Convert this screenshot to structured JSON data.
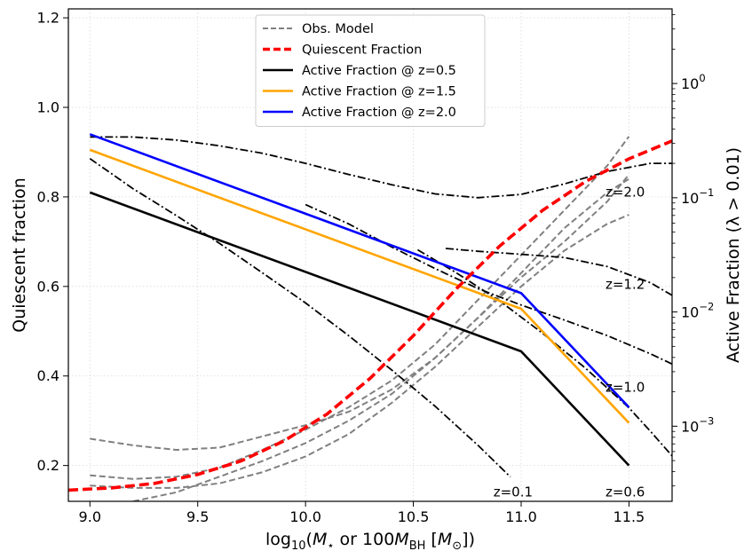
{
  "chart_data": {
    "type": "line",
    "xlabel": "log10(M⋆ or 100MBH [M☉])",
    "xlabel_parts": {
      "pre": "log",
      "sub1": "10",
      "open": "(",
      "mstar": "M",
      "star": "⋆",
      "mid": " or 100",
      "mbh": "M",
      "bh": "BH",
      "bracket": " [",
      "msun": "M",
      "sun": "⊙",
      "close": "])"
    },
    "ylabel_left": "Quiescent fraction",
    "ylabel_right": "Active Fraction (λ > 0.01)",
    "xlim": [
      8.9,
      11.7
    ],
    "ylim_left": [
      0.12,
      1.22
    ],
    "ylim_right_log": [
      0.00022,
      4.5
    ],
    "x_ticks": [
      9.0,
      9.5,
      10.0,
      10.5,
      11.0,
      11.5
    ],
    "x_tick_labels": [
      "9.0",
      "9.5",
      "10.0",
      "10.5",
      "11.0",
      "11.5"
    ],
    "y_ticks_left": [
      0.2,
      0.4,
      0.6,
      0.8,
      1.0,
      1.2
    ],
    "y_tick_labels_left": [
      "0.2",
      "0.4",
      "0.6",
      "0.8",
      "1.0",
      "1.2"
    ],
    "y_ticks_right": [
      0.001,
      0.01,
      0.1,
      1.0
    ],
    "y_tick_labels_right": [
      {
        "base": "10",
        "exp": "−3"
      },
      {
        "base": "10",
        "exp": "−2"
      },
      {
        "base": "10",
        "exp": "−1"
      },
      {
        "base": "10",
        "exp": "0"
      }
    ],
    "grid": true,
    "legend": {
      "position": "upper-center",
      "entries": [
        {
          "label": "Obs. Model",
          "color": "#808080",
          "style": "dashed",
          "width": 2
        },
        {
          "label": "Quiescent Fraction",
          "color": "#ff0000",
          "style": "dashed",
          "width": 3.5
        },
        {
          "label": "Active Fraction @ z=0.5",
          "color": "#000000",
          "style": "solid",
          "width": 2.5
        },
        {
          "label": "Active Fraction @ z=1.5",
          "color": "#ffa500",
          "style": "solid",
          "width": 2.5
        },
        {
          "label": "Active Fraction @ z=2.0",
          "color": "#0000ff",
          "style": "solid",
          "width": 2.5
        }
      ]
    },
    "obs_model_series": [
      {
        "axis": "left",
        "x": [
          9.0,
          9.2,
          9.4,
          9.6,
          9.8,
          10.0,
          10.2,
          10.4,
          10.6,
          10.8,
          11.0,
          11.2,
          11.4,
          11.5
        ],
        "y": [
          0.26,
          0.245,
          0.235,
          0.24,
          0.265,
          0.29,
          0.32,
          0.37,
          0.44,
          0.53,
          0.63,
          0.73,
          0.81,
          0.84
        ]
      },
      {
        "axis": "left",
        "x": [
          9.0,
          9.2,
          9.4,
          9.6,
          9.8,
          10.0,
          10.2,
          10.4,
          10.6,
          10.8,
          11.0,
          11.2,
          11.4,
          11.5
        ],
        "y": [
          0.178,
          0.17,
          0.175,
          0.195,
          0.235,
          0.28,
          0.33,
          0.39,
          0.47,
          0.57,
          0.67,
          0.77,
          0.87,
          0.935
        ]
      },
      {
        "axis": "left",
        "x": [
          9.0,
          9.2,
          9.4,
          9.6,
          9.8,
          10.0,
          10.2,
          10.4,
          10.6,
          10.8,
          11.0,
          11.2,
          11.4,
          11.5
        ],
        "y": [
          0.155,
          0.15,
          0.15,
          0.16,
          0.185,
          0.22,
          0.27,
          0.34,
          0.42,
          0.51,
          0.6,
          0.68,
          0.74,
          0.76
        ]
      },
      {
        "axis": "left",
        "x": [
          9.2,
          9.4,
          9.6,
          9.8,
          10.0,
          10.2,
          10.4,
          10.6,
          10.8,
          11.0,
          11.2,
          11.4,
          11.5
        ],
        "y": [
          0.12,
          0.14,
          0.175,
          0.21,
          0.25,
          0.3,
          0.36,
          0.44,
          0.53,
          0.62,
          0.7,
          0.79,
          0.85
        ]
      }
    ],
    "quiescent_fraction": {
      "axis": "left",
      "x": [
        8.9,
        9.1,
        9.3,
        9.5,
        9.7,
        9.9,
        10.1,
        10.3,
        10.5,
        10.7,
        10.9,
        11.1,
        11.3,
        11.5,
        11.7
      ],
      "y": [
        0.145,
        0.15,
        0.16,
        0.18,
        0.21,
        0.255,
        0.315,
        0.395,
        0.49,
        0.595,
        0.69,
        0.77,
        0.835,
        0.885,
        0.925
      ]
    },
    "active_fraction_series": [
      {
        "name": "Active Fraction @ z=0.5",
        "axis": "left",
        "x": [
          9.0,
          11.0,
          11.5
        ],
        "y": [
          0.81,
          0.455,
          0.2
        ]
      },
      {
        "name": "Active Fraction @ z=1.5",
        "axis": "left",
        "x": [
          9.0,
          11.0,
          11.5
        ],
        "y": [
          0.905,
          0.55,
          0.295
        ]
      },
      {
        "name": "Active Fraction @ z=2.0",
        "axis": "left",
        "x": [
          9.0,
          11.0,
          11.5
        ],
        "y": [
          0.94,
          0.585,
          0.33
        ]
      }
    ],
    "dashdot_series": [
      {
        "label": "z=2.0",
        "axis": "right",
        "x": [
          9.0,
          9.2,
          9.4,
          9.6,
          9.8,
          10.0,
          10.2,
          10.4,
          10.6,
          10.8,
          11.0,
          11.2,
          11.4,
          11.6,
          11.7
        ],
        "y": [
          0.34,
          0.34,
          0.32,
          0.285,
          0.245,
          0.2,
          0.16,
          0.13,
          0.108,
          0.1,
          0.107,
          0.132,
          0.17,
          0.2,
          0.2
        ]
      },
      {
        "label": "z=1.2",
        "axis": "right",
        "x": [
          10.65,
          10.8,
          11.0,
          11.2,
          11.4,
          11.6,
          11.7
        ],
        "y": [
          0.036,
          0.034,
          0.032,
          0.03,
          0.025,
          0.018,
          0.014
        ]
      },
      {
        "label": "z=1.0",
        "axis": "right",
        "x": [
          10.0,
          10.2,
          10.4,
          10.6,
          10.8,
          11.0,
          11.2,
          11.4,
          11.6,
          11.7
        ],
        "y": [
          0.087,
          0.059,
          0.037,
          0.024,
          0.016,
          0.0115,
          0.0085,
          0.0062,
          0.0043,
          0.0035
        ]
      },
      {
        "label": "z=0.6",
        "axis": "right",
        "x": [
          10.52,
          10.7,
          10.9,
          11.1,
          11.3,
          11.5,
          11.6,
          11.7
        ],
        "y": [
          0.035,
          0.022,
          0.0125,
          0.0065,
          0.0032,
          0.00145,
          0.0009,
          0.00055
        ]
      },
      {
        "label": "z=0.1",
        "axis": "right",
        "x": [
          9.0,
          9.2,
          9.4,
          9.6,
          9.8,
          10.0,
          10.2,
          10.4,
          10.6,
          10.8,
          10.95
        ],
        "y": [
          0.22,
          0.12,
          0.07,
          0.04,
          0.022,
          0.012,
          0.0062,
          0.0031,
          0.0015,
          0.00068,
          0.00036
        ]
      }
    ],
    "annotations": [
      {
        "text": "z=2.0",
        "x": 11.47,
        "y_right": 0.112
      },
      {
        "text": "z=1.2",
        "x": 11.47,
        "y_right": 0.0175
      },
      {
        "text": "z=1.0",
        "x": 11.47,
        "y_right": 0.0022
      },
      {
        "text": "z=0.6",
        "x": 11.47,
        "y_right": 0.000265
      },
      {
        "text": "z=0.1",
        "x": 10.95,
        "y_right": 0.000265
      }
    ]
  }
}
